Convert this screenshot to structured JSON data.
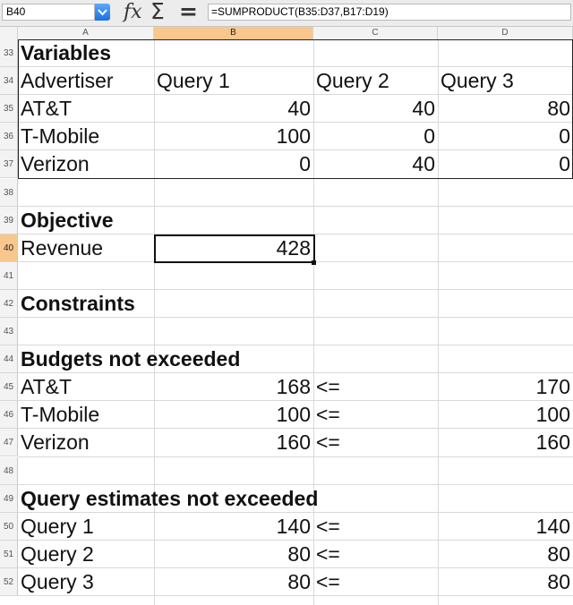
{
  "formula_bar": {
    "name_box": "B40",
    "fx_icon": "fx-icon",
    "sum_icon": "sigma-icon",
    "equals_icon": "equals-icon",
    "formula": "=SUMPRODUCT(B35:D37,B17:D19)"
  },
  "columns": [
    "A",
    "B",
    "C",
    "D"
  ],
  "rows": [
    "33",
    "34",
    "35",
    "36",
    "37",
    "38",
    "39",
    "40",
    "41",
    "42",
    "43",
    "44",
    "45",
    "46",
    "47",
    "48",
    "49",
    "50",
    "51",
    "52"
  ],
  "cells": {
    "r33": {
      "a": "Variables"
    },
    "r34": {
      "a": "Advertiser",
      "b": "Query 1",
      "c": "Query 2",
      "d": "Query 3"
    },
    "r35": {
      "a": "AT&T",
      "b": "40",
      "c": "40",
      "d": "80"
    },
    "r36": {
      "a": "T-Mobile",
      "b": "100",
      "c": "0",
      "d": "0"
    },
    "r37": {
      "a": "Verizon",
      "b": "0",
      "c": "40",
      "d": "0"
    },
    "r39": {
      "a": "Objective"
    },
    "r40": {
      "a": "Revenue",
      "b": "428"
    },
    "r42": {
      "a": "Constraints"
    },
    "r44": {
      "a": "Budgets not exceeded"
    },
    "r45": {
      "a": "AT&T",
      "b": "168",
      "c": "<=",
      "d": "170"
    },
    "r46": {
      "a": "T-Mobile",
      "b": "100",
      "c": "<=",
      "d": "100"
    },
    "r47": {
      "a": "Verizon",
      "b": "160",
      "c": "<=",
      "d": "160"
    },
    "r49": {
      "a": "Query estimates not exceeded"
    },
    "r50": {
      "a": "Query 1",
      "b": "140",
      "c": "<=",
      "d": "140"
    },
    "r51": {
      "a": "Query 2",
      "b": "80",
      "c": "<=",
      "d": "80"
    },
    "r52": {
      "a": "Query 3",
      "b": "80",
      "c": "<=",
      "d": "80"
    }
  },
  "selection": {
    "cell": "B40",
    "column": "B",
    "row": "40"
  },
  "colors": {
    "selection_header": "#f9c78c",
    "name_dropdown": "#1d6fe0"
  }
}
